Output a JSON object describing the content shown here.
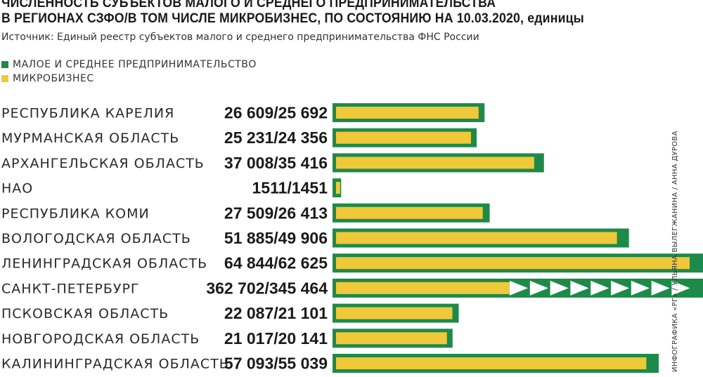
{
  "header": {
    "title_line1": "ЧИСЛЕННОСТЬ СУБЪЕКТОВ МАЛОГО И СРЕДНЕГО ПРЕДПРИНИМАТЕЛЬСТВА",
    "title_line2": "В РЕГИОНАХ СЗФО/В ТОМ ЧИСЛЕ МИКРОБИЗНЕС, ПО СОСТОЯНИЮ НА 10.03.2020, единицы",
    "source": "Источник: Единый реестр субъектов малого и среднего предпринимательства ФНС России"
  },
  "credit": "ИНФОГРАФИКА «РГ» / УЛЬЯНА ВЫЛЕГЖАНИНА / АННА ДУРОВА",
  "colors": {
    "sme": "#1e8a4a",
    "micro": "#f0c93a"
  },
  "chart_data": {
    "type": "bar",
    "orientation": "horizontal",
    "legend": [
      "МАЛОЕ И СРЕДНЕЕ ПРЕДПРИНИМАТЕЛЬСТВО",
      "МИКРОБИЗНЕС"
    ],
    "legend_position": "top-left",
    "grid": false,
    "truncated_bar_category": "САНКТ-ПЕТЕРБУРГ",
    "categories": [
      "РЕСПУБЛИКА КАРЕЛИЯ",
      "МУРМАНСКАЯ ОБЛАСТЬ",
      "АРХАНГЕЛЬСКАЯ ОБЛАСТЬ",
      "НАО",
      "РЕСПУБЛИКА КОМИ",
      "ВОЛОГОДСКАЯ ОБЛАСТЬ",
      "ЛЕНИНГРАДСКАЯ ОБЛАСТЬ",
      "САНКТ-ПЕТЕРБУРГ",
      "ПСКОВСКАЯ ОБЛАСТЬ",
      "НОВГОРОДСКАЯ ОБЛАСТЬ",
      "КАЛИНИНГРАДСКАЯ ОБЛАСТЬ"
    ],
    "value_labels": [
      "26 609/25 692",
      "25 231/24 356",
      "37 008/35 416",
      "1511/1451",
      "27 509/26 413",
      "51 885/49 906",
      "64 844/62 625",
      "362 702/345 464",
      "22 087/21 101",
      "21 017/20 141",
      "57 093/55 039"
    ],
    "series": [
      {
        "name": "МАЛОЕ И СРЕДНЕЕ ПРЕДПРИНИМАТЕЛЬСТВО",
        "values": [
          26609,
          25231,
          37008,
          1511,
          27509,
          51885,
          64844,
          362702,
          22087,
          21017,
          57093
        ]
      },
      {
        "name": "МИКРОБИЗНЕС",
        "values": [
          25692,
          24356,
          35416,
          1451,
          26413,
          49906,
          62625,
          345464,
          21101,
          20141,
          55039
        ]
      }
    ]
  }
}
